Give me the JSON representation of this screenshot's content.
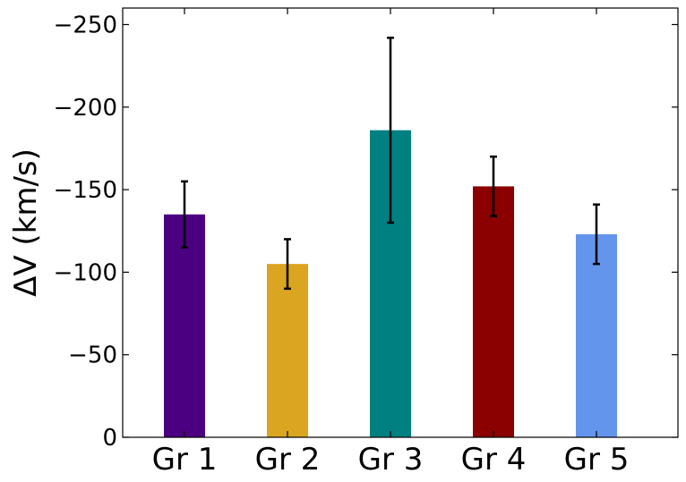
{
  "chart_data": {
    "type": "bar",
    "categories": [
      "Gr 1",
      "Gr 2",
      "Gr 3",
      "Gr 4",
      "Gr 5"
    ],
    "values": [
      -135,
      -105,
      -186,
      -152,
      -123
    ],
    "errors": [
      20,
      15,
      56,
      18,
      18
    ],
    "colors": [
      "#4b0082",
      "#daa520",
      "#008080",
      "#8b0000",
      "#6495ed"
    ],
    "ylabel": "ΔV (km/s)",
    "ylim": [
      0,
      -260
    ],
    "y_inverted": true,
    "yticks": [
      0,
      -50,
      -100,
      -150,
      -200,
      -250
    ],
    "ytick_labels": [
      "0",
      "−50",
      "−100",
      "−150",
      "−200",
      "−250"
    ],
    "grid": false,
    "legend": "none"
  }
}
